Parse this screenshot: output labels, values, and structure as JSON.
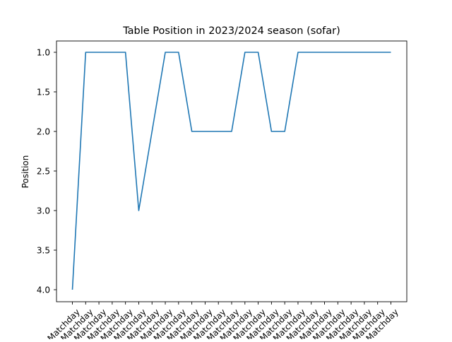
{
  "chart_data": {
    "type": "line",
    "title": "Table Position in 2023/2024 season (sofar)",
    "xlabel": "",
    "ylabel": "Position",
    "y_inverted": true,
    "ylim": [
      4.0,
      1.0
    ],
    "y_ticks": [
      1.0,
      1.5,
      2.0,
      2.5,
      3.0,
      3.5,
      4.0
    ],
    "y_tick_labels": [
      "1.0",
      "1.5",
      "2.0",
      "2.5",
      "3.0",
      "3.5",
      "4.0"
    ],
    "x_tick_label_rotation_deg": 45,
    "grid": false,
    "legend": "none",
    "categories": [
      "Matchday",
      "Matchday",
      "Matchday",
      "Matchday",
      "Matchday",
      "Matchday",
      "Matchday",
      "Matchday",
      "Matchday",
      "Matchday",
      "Matchday",
      "Matchday",
      "Matchday",
      "Matchday",
      "Matchday",
      "Matchday",
      "Matchday",
      "Matchday",
      "Matchday",
      "Matchday",
      "Matchday",
      "Matchday",
      "Matchday",
      "Matchday",
      "Matchday"
    ],
    "series": [
      {
        "color": "#1f77b4",
        "values": [
          4,
          1,
          1,
          1,
          1,
          3,
          2,
          1,
          1,
          2,
          2,
          2,
          2,
          1,
          1,
          2,
          2,
          1,
          1,
          1,
          1,
          1,
          1,
          1,
          1
        ]
      }
    ]
  }
}
